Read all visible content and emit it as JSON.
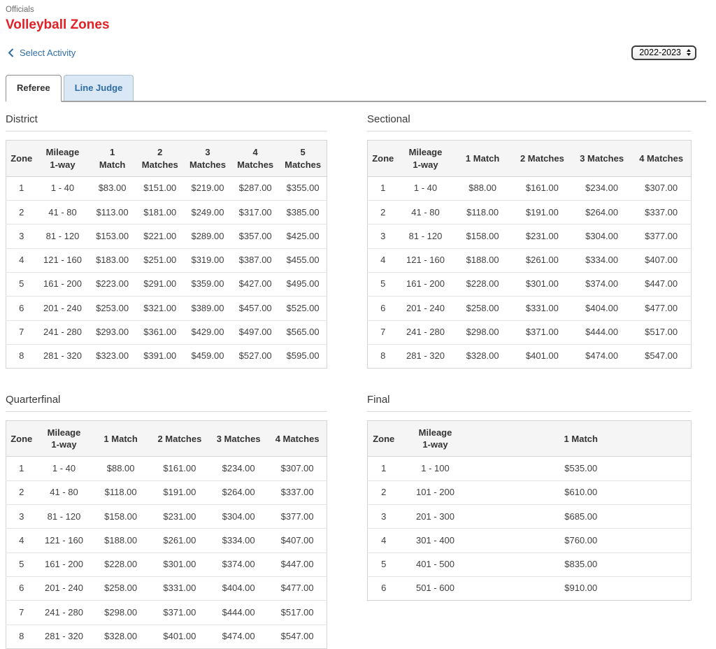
{
  "header": {
    "breadcrumb": "Officials",
    "title": "Volleyball Zones"
  },
  "nav": {
    "back_label": "Select Activity"
  },
  "season_dropdown": {
    "selected": "2022-2023"
  },
  "tabs": [
    {
      "label": "Referee",
      "active": true
    },
    {
      "label": "Line Judge",
      "active": false
    }
  ],
  "colors": {
    "title_red": "#e02125",
    "link_blue": "#2e6da4",
    "tab_inactive_bg": "#dae8f5",
    "table_header_bg": "#f5f5f5",
    "table_border": "#d4d4d4"
  },
  "tables": [
    {
      "title": "District",
      "columns": [
        "Zone",
        "Mileage\n1-way",
        "1\nMatch",
        "2\nMatches",
        "3\nMatches",
        "4\nMatches",
        "5\nMatches"
      ],
      "rows": [
        [
          "1",
          "1 - 40",
          "$83.00",
          "$151.00",
          "$219.00",
          "$287.00",
          "$355.00"
        ],
        [
          "2",
          "41 - 80",
          "$113.00",
          "$181.00",
          "$249.00",
          "$317.00",
          "$385.00"
        ],
        [
          "3",
          "81 - 120",
          "$153.00",
          "$221.00",
          "$289.00",
          "$357.00",
          "$425.00"
        ],
        [
          "4",
          "121 - 160",
          "$183.00",
          "$251.00",
          "$319.00",
          "$387.00",
          "$455.00"
        ],
        [
          "5",
          "161 - 200",
          "$223.00",
          "$291.00",
          "$359.00",
          "$427.00",
          "$495.00"
        ],
        [
          "6",
          "201 - 240",
          "$253.00",
          "$321.00",
          "$389.00",
          "$457.00",
          "$525.00"
        ],
        [
          "7",
          "241 - 280",
          "$293.00",
          "$361.00",
          "$429.00",
          "$497.00",
          "$565.00"
        ],
        [
          "8",
          "281 - 320",
          "$323.00",
          "$391.00",
          "$459.00",
          "$527.00",
          "$595.00"
        ]
      ]
    },
    {
      "title": "Sectional",
      "columns": [
        "Zone",
        "Mileage\n1-way",
        "1 Match",
        "2 Matches",
        "3 Matches",
        "4 Matches"
      ],
      "rows": [
        [
          "1",
          "1 - 40",
          "$88.00",
          "$161.00",
          "$234.00",
          "$307.00"
        ],
        [
          "2",
          "41 - 80",
          "$118.00",
          "$191.00",
          "$264.00",
          "$337.00"
        ],
        [
          "3",
          "81 - 120",
          "$158.00",
          "$231.00",
          "$304.00",
          "$377.00"
        ],
        [
          "4",
          "121 - 160",
          "$188.00",
          "$261.00",
          "$334.00",
          "$407.00"
        ],
        [
          "5",
          "161 - 200",
          "$228.00",
          "$301.00",
          "$374.00",
          "$447.00"
        ],
        [
          "6",
          "201 - 240",
          "$258.00",
          "$331.00",
          "$404.00",
          "$477.00"
        ],
        [
          "7",
          "241 - 280",
          "$298.00",
          "$371.00",
          "$444.00",
          "$517.00"
        ],
        [
          "8",
          "281 - 320",
          "$328.00",
          "$401.00",
          "$474.00",
          "$547.00"
        ]
      ]
    },
    {
      "title": "Quarterfinal",
      "columns": [
        "Zone",
        "Mileage\n1-way",
        "1 Match",
        "2 Matches",
        "3 Matches",
        "4 Matches"
      ],
      "rows": [
        [
          "1",
          "1 - 40",
          "$88.00",
          "$161.00",
          "$234.00",
          "$307.00"
        ],
        [
          "2",
          "41 - 80",
          "$118.00",
          "$191.00",
          "$264.00",
          "$337.00"
        ],
        [
          "3",
          "81 - 120",
          "$158.00",
          "$231.00",
          "$304.00",
          "$377.00"
        ],
        [
          "4",
          "121 - 160",
          "$188.00",
          "$261.00",
          "$334.00",
          "$407.00"
        ],
        [
          "5",
          "161 - 200",
          "$228.00",
          "$301.00",
          "$374.00",
          "$447.00"
        ],
        [
          "6",
          "201 - 240",
          "$258.00",
          "$331.00",
          "$404.00",
          "$477.00"
        ],
        [
          "7",
          "241 - 280",
          "$298.00",
          "$371.00",
          "$444.00",
          "$517.00"
        ],
        [
          "8",
          "281 - 320",
          "$328.00",
          "$401.00",
          "$474.00",
          "$547.00"
        ]
      ]
    },
    {
      "title": "Final",
      "columns": [
        "Zone",
        "Mileage\n1-way",
        "1 Match"
      ],
      "rows": [
        [
          "1",
          "1 - 100",
          "$535.00"
        ],
        [
          "2",
          "101 - 200",
          "$610.00"
        ],
        [
          "3",
          "201 - 300",
          "$685.00"
        ],
        [
          "4",
          "301 - 400",
          "$760.00"
        ],
        [
          "5",
          "401 - 500",
          "$835.00"
        ],
        [
          "6",
          "501 - 600",
          "$910.00"
        ]
      ]
    }
  ]
}
